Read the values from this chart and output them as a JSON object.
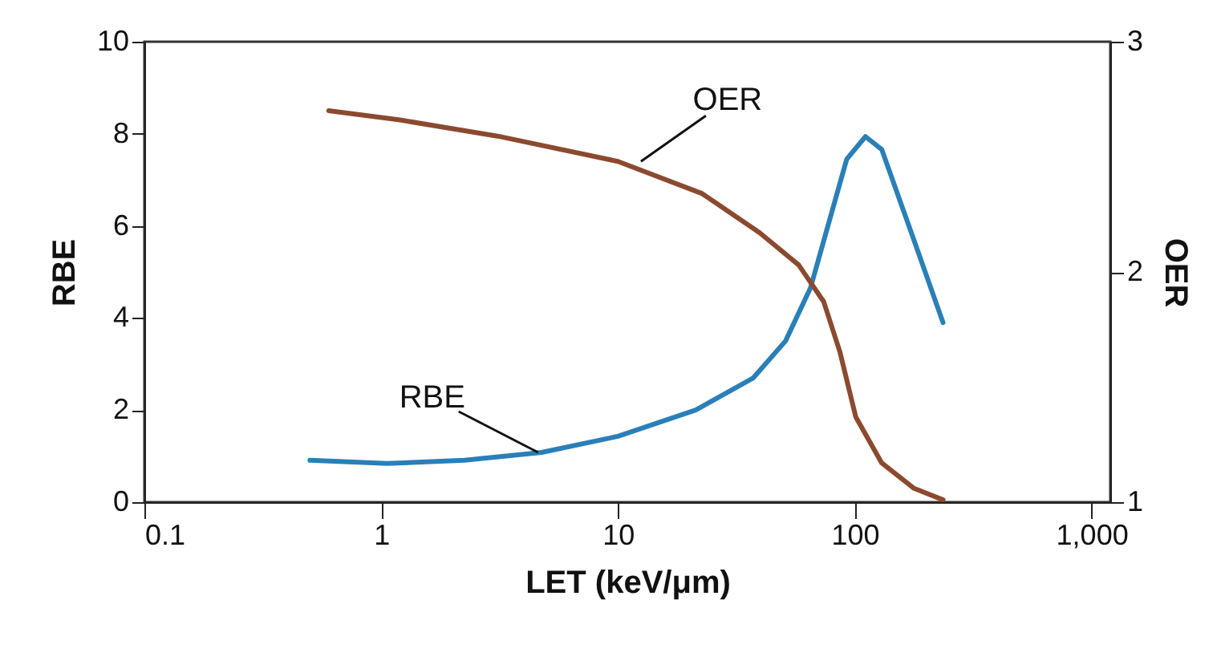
{
  "chart_data": {
    "type": "line",
    "xlabel": "LET (keV/μm)",
    "ylabel": "RBE",
    "y2label": "OER",
    "log": "x",
    "xlim": [
      0.1,
      1200
    ],
    "xticks": [
      0.1,
      1,
      10,
      100,
      {
        "value": 1000,
        "label": "1,000"
      }
    ],
    "ylim": [
      0,
      10
    ],
    "yticks": [
      0,
      2,
      4,
      6,
      8,
      10
    ],
    "y2lim": [
      1,
      3
    ],
    "y2ticks": [
      1,
      2,
      3
    ],
    "grid": false,
    "line_style": "solid",
    "series": [
      {
        "color": "#2a7fb8",
        "x": [
          0.5,
          1.06,
          2.25,
          4.76,
          10,
          21.3,
          37.3,
          51,
          65,
          79,
          92.5,
          111,
          130,
          172,
          236
        ],
        "values": [
          0.91,
          0.84,
          0.91,
          1.08,
          1.43,
          2.0,
          2.7,
          3.5,
          4.65,
          6.2,
          7.45,
          7.94,
          7.66,
          5.9,
          3.9
        ]
      },
      {
        "color": "#8b4a2f",
        "axis": "y2",
        "x": [
          0.6,
          1.2,
          3.1,
          10,
          22.7,
          39.7,
          58,
          74,
          86.7,
          101,
          130,
          178,
          236
        ],
        "values": [
          2.7,
          2.66,
          2.59,
          2.48,
          2.34,
          2.17,
          2.03,
          1.87,
          1.65,
          1.37,
          1.17,
          1.06,
          1.01
        ]
      }
    ],
    "annotations": [
      {
        "text": "OER",
        "x": 12.5,
        "y": 7.4
      },
      {
        "text": "RBE",
        "x": 4.6,
        "y": 1.08
      }
    ]
  }
}
